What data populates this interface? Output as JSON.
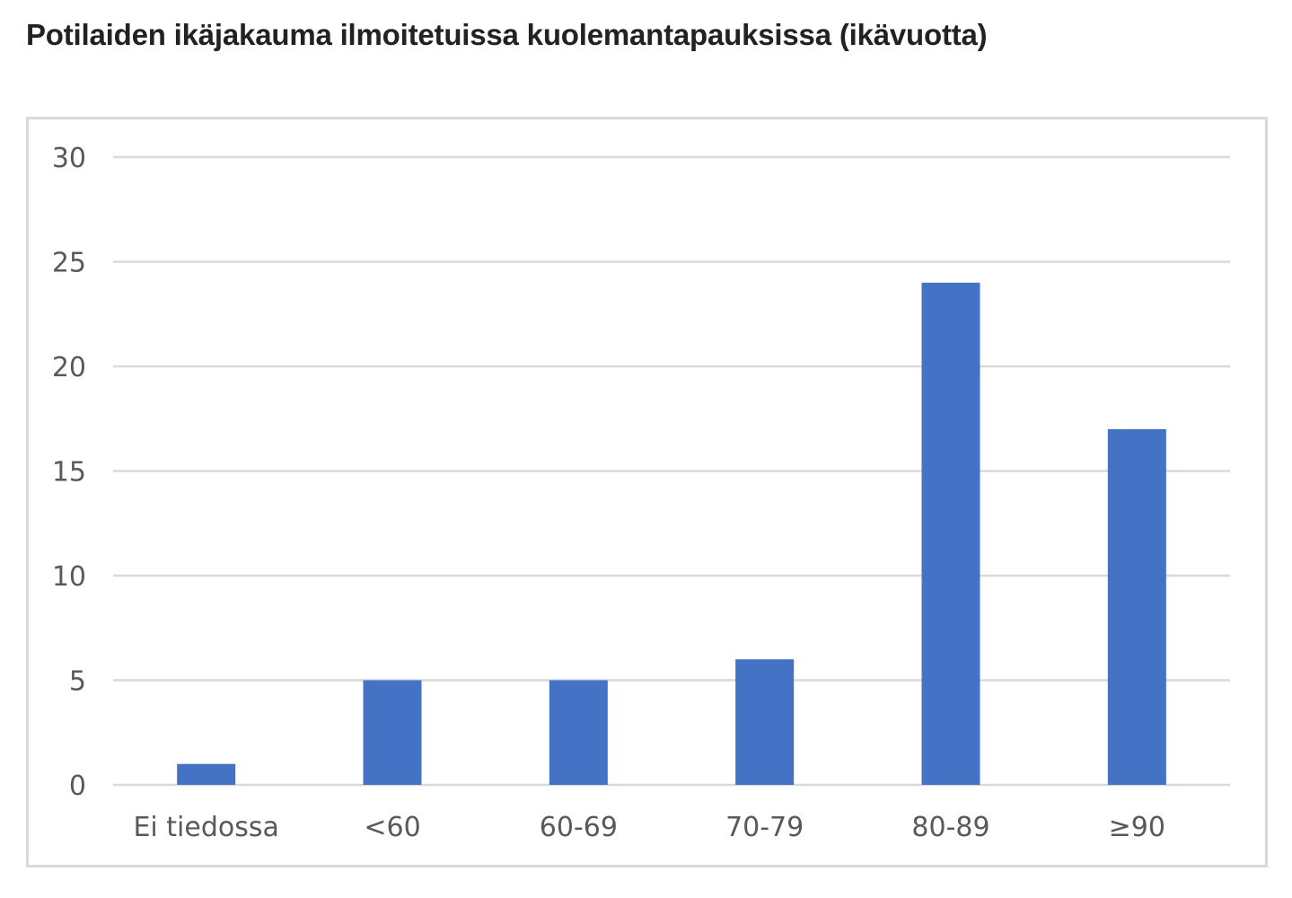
{
  "page": {
    "title": "Potilaiden ikäjakauma ilmoitetuissa kuolemantapauksissa (ikävuotta)"
  },
  "chart_data": {
    "type": "bar",
    "title": "",
    "xlabel": "",
    "ylabel": "",
    "categories": [
      "Ei tiedossa",
      "<60",
      "60-69",
      "70-79",
      "80-89",
      "≥90"
    ],
    "values": [
      1,
      5,
      5,
      6,
      24,
      17
    ],
    "ylim": [
      0,
      30
    ],
    "yticks": [
      0,
      5,
      10,
      15,
      20,
      25,
      30
    ],
    "grid": true,
    "legend": "none",
    "bar_color": "#4472c4",
    "grid_color": "#d9d9d9",
    "text_color": "#595959"
  }
}
